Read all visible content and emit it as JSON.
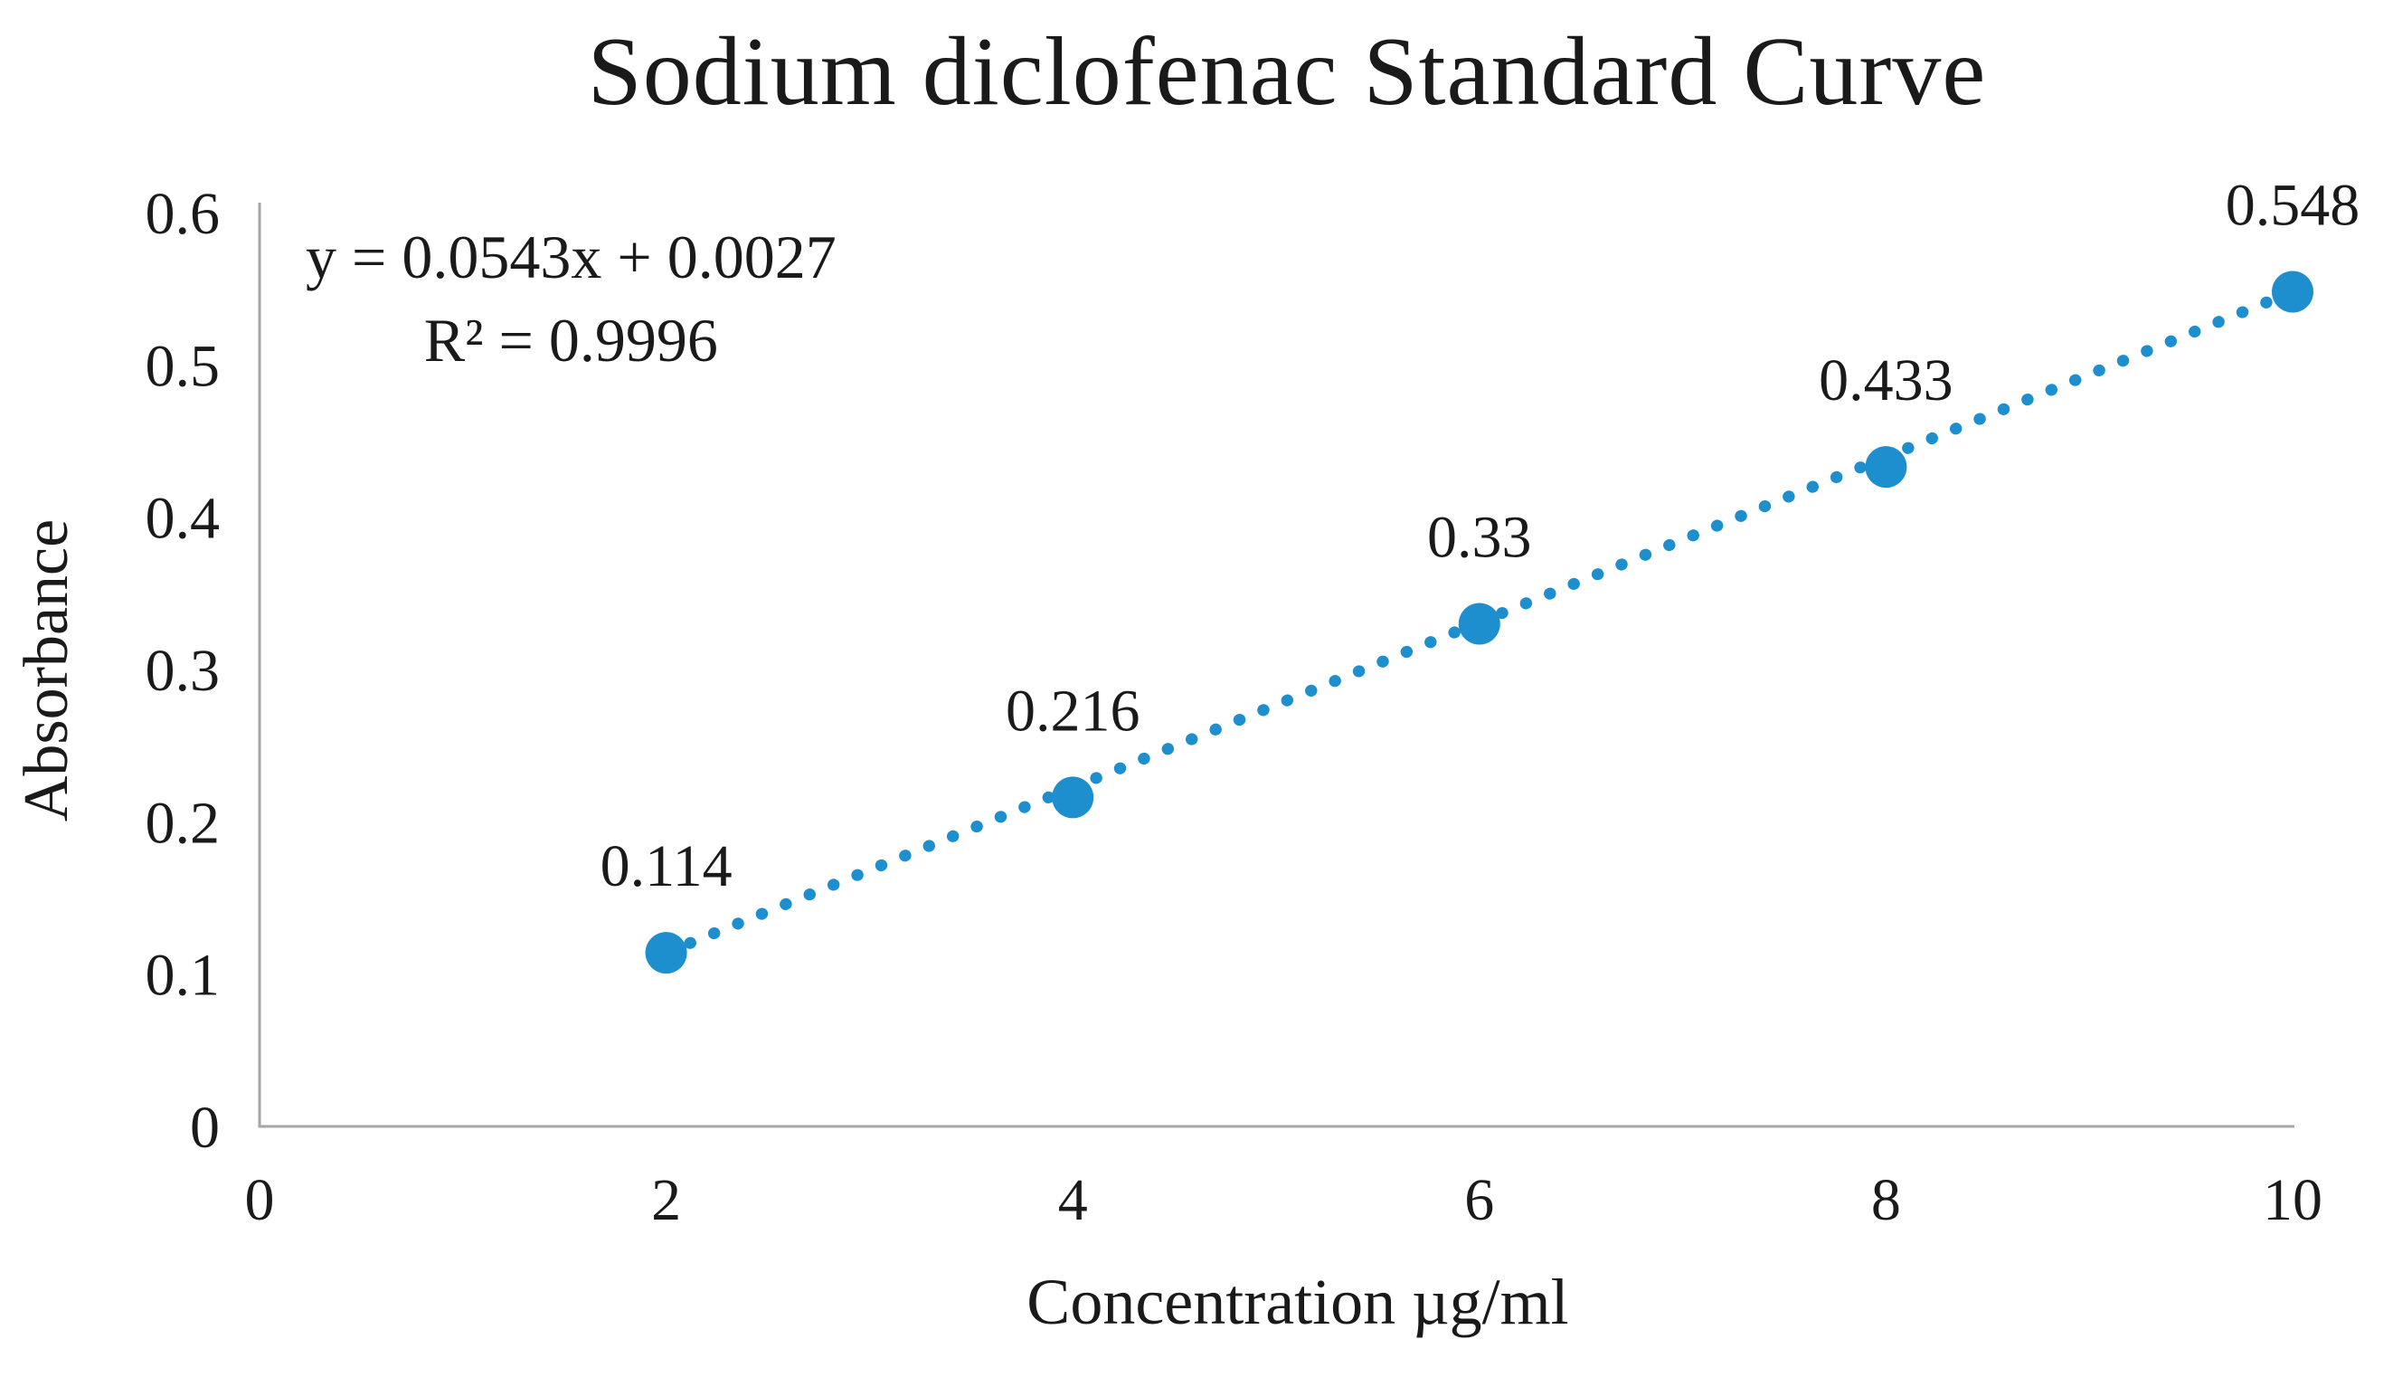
{
  "chart_data": {
    "type": "scatter",
    "title": "Sodium diclofenac Standard Curve",
    "xlabel": "Concentration µg/ml",
    "ylabel": "Absorbance",
    "x": [
      2,
      4,
      6,
      8,
      10
    ],
    "y": [
      0.114,
      0.216,
      0.33,
      0.433,
      0.548
    ],
    "point_labels": [
      "0.114",
      "0.216",
      "0.33",
      "0.433",
      "0.548"
    ],
    "x_ticks": [
      "0",
      "2",
      "4",
      "6",
      "8",
      "10"
    ],
    "y_ticks": [
      "0",
      "0.1",
      "0.2",
      "0.3",
      "0.4",
      "0.5",
      "0.6"
    ],
    "xlim": [
      0,
      10
    ],
    "ylim": [
      0,
      0.6
    ],
    "grid": false,
    "legend": "none",
    "trendline": {
      "equation": "y = 0.0543x + 0.0027",
      "r_squared": "R² = 0.9996",
      "slope": 0.0543,
      "intercept": 0.0027,
      "style": "dotted"
    },
    "colors": {
      "series": "#1E8FCE",
      "axis": "#A6A6A6",
      "text": "#1A1A1A"
    }
  }
}
